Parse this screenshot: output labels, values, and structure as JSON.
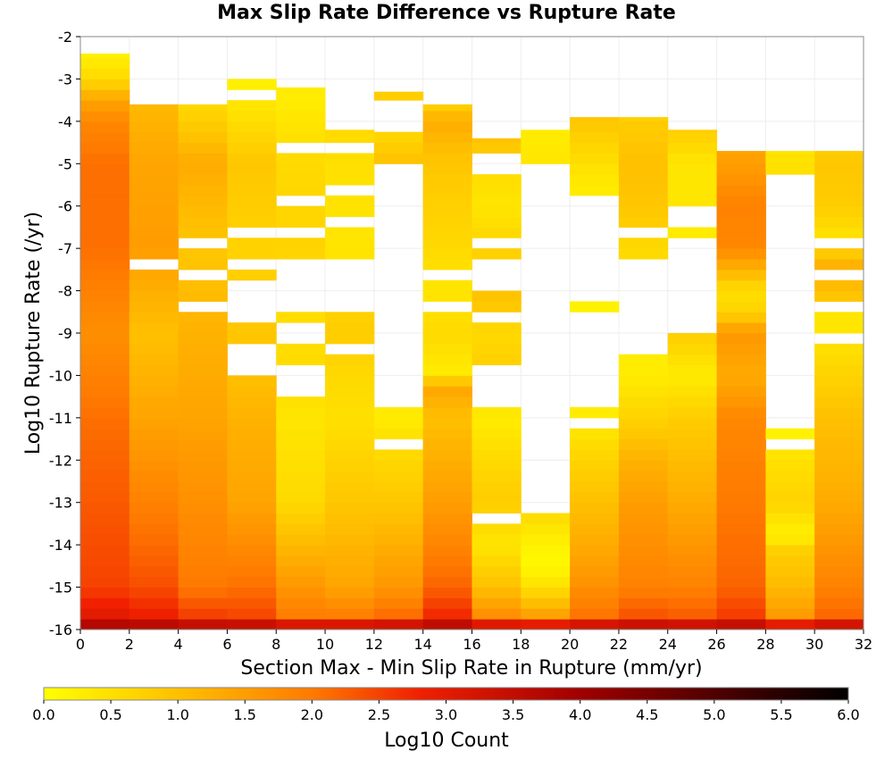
{
  "chart_data": {
    "type": "heatmap",
    "title": "Max Slip Rate Difference vs Rupture Rate",
    "xlabel": "Section Max - Min Slip Rate in Rupture (mm/yr)",
    "ylabel": "Log10 Rupture Rate (/yr)",
    "xlim": [
      0,
      32
    ],
    "ylim": [
      -16,
      -2
    ],
    "x_bin_width": 2,
    "y_bin_height": 0.25,
    "x_ticks": [
      "0",
      "2",
      "4",
      "6",
      "8",
      "10",
      "12",
      "14",
      "16",
      "18",
      "20",
      "22",
      "24",
      "26",
      "28",
      "30",
      "32"
    ],
    "y_ticks": [
      "-2",
      "-3",
      "-4",
      "-5",
      "-6",
      "-7",
      "-8",
      "-9",
      "-10",
      "-11",
      "-12",
      "-13",
      "-14",
      "-15",
      "-16"
    ],
    "colorbar": {
      "label": "Log10 Count",
      "range": [
        0,
        6
      ],
      "ticks": [
        "0.0",
        "0.5",
        "1.0",
        "1.5",
        "2.0",
        "2.5",
        "3.0",
        "3.5",
        "4.0",
        "4.5",
        "5.0",
        "5.5",
        "6.0"
      ],
      "stops": [
        {
          "value": 0.0,
          "color": "#ffff00"
        },
        {
          "value": 1.0,
          "color": "#ffc000"
        },
        {
          "value": 2.0,
          "color": "#ff7a00"
        },
        {
          "value": 2.8,
          "color": "#f02000"
        },
        {
          "value": 4.0,
          "color": "#a00000"
        },
        {
          "value": 6.0,
          "color": "#000000"
        }
      ]
    },
    "grid": true,
    "columns": [
      {
        "x": 1,
        "fill": [
          -16,
          -2.4
        ],
        "profile": [
          [
            -16,
            4.3
          ],
          [
            -15.75,
            3.1
          ],
          [
            -15,
            2.5
          ],
          [
            -13,
            2.3
          ],
          [
            -11,
            2.1
          ],
          [
            -9,
            1.7
          ],
          [
            -7,
            2.1
          ],
          [
            -5,
            2.1
          ],
          [
            -4,
            1.8
          ],
          [
            -3.5,
            1.4
          ],
          [
            -3,
            0.6
          ],
          [
            -2.4,
            0.2
          ]
        ],
        "holes": []
      },
      {
        "x": 3,
        "fill": [
          -16,
          -3.6
        ],
        "profile": [
          [
            -16,
            4.3
          ],
          [
            -15.75,
            2.9
          ],
          [
            -15,
            2.4
          ],
          [
            -13,
            1.9
          ],
          [
            -11,
            1.4
          ],
          [
            -9,
            1.0
          ],
          [
            -7,
            1.5
          ],
          [
            -5,
            1.4
          ],
          [
            -3.6,
            1.1
          ]
        ],
        "holes": [
          [
            -7.5,
            -7.25
          ]
        ]
      },
      {
        "x": 5,
        "fill": [
          -16,
          -3.6
        ],
        "profile": [
          [
            -16,
            4.3
          ],
          [
            -15.75,
            2.6
          ],
          [
            -15,
            2.0
          ],
          [
            -13,
            1.7
          ],
          [
            -11,
            1.4
          ],
          [
            -9,
            1.2
          ],
          [
            -7,
            0.9
          ],
          [
            -5,
            1.3
          ],
          [
            -3.6,
            0.6
          ]
        ],
        "holes": [
          [
            -7.75,
            -7.5
          ],
          [
            -8.5,
            -8.25
          ],
          [
            -7.0,
            -6.75
          ]
        ]
      },
      {
        "x": 7,
        "fill": [
          -16,
          -3.0
        ],
        "profile": [
          [
            -16,
            4.3
          ],
          [
            -15.75,
            2.5
          ],
          [
            -15,
            2.1
          ],
          [
            -13,
            1.4
          ],
          [
            -11,
            1.2
          ],
          [
            -10,
            1.0
          ],
          [
            -9,
            0.9
          ],
          [
            -7,
            0.7
          ],
          [
            -5,
            0.9
          ],
          [
            -3.6,
            0.4
          ],
          [
            -3,
            0.2
          ]
        ],
        "holes": [
          [
            -10,
            -9.25
          ],
          [
            -8.75,
            -7.75
          ],
          [
            -7.5,
            -7.25
          ],
          [
            -6.75,
            -6.5
          ],
          [
            -3.5,
            -3.3
          ]
        ]
      },
      {
        "x": 9,
        "fill": [
          -16,
          -3.2
        ],
        "profile": [
          [
            -16,
            4.3
          ],
          [
            -15.75,
            2.0
          ],
          [
            -15,
            1.6
          ],
          [
            -13,
            0.6
          ],
          [
            -11,
            0.4
          ],
          [
            -10,
            0.6
          ],
          [
            -9,
            0.5
          ],
          [
            -7,
            0.7
          ],
          [
            -5,
            0.6
          ],
          [
            -3.5,
            0.3
          ]
        ],
        "holes": [
          [
            -10.5,
            -9.8
          ],
          [
            -9.25,
            -8.75
          ],
          [
            -8.5,
            -7.25
          ],
          [
            -6.75,
            -6.5
          ],
          [
            -6.0,
            -5.75
          ],
          [
            -4.75,
            -4.5
          ],
          [
            -3.6,
            -3.5
          ]
        ]
      },
      {
        "x": 11,
        "fill": [
          -16,
          -4.2
        ],
        "profile": [
          [
            -16,
            4.3
          ],
          [
            -15.75,
            2.0
          ],
          [
            -15,
            1.4
          ],
          [
            -13,
            0.9
          ],
          [
            -11,
            0.5
          ],
          [
            -10,
            0.6
          ],
          [
            -9,
            0.8
          ],
          [
            -7,
            0.4
          ],
          [
            -5,
            0.5
          ],
          [
            -4.2,
            0.6
          ]
        ],
        "holes": [
          [
            -9.5,
            -9.25
          ],
          [
            -8.5,
            -7.25
          ],
          [
            -6.5,
            -6.25
          ],
          [
            -5.75,
            -5.5
          ],
          [
            -4.7,
            -4.5
          ]
        ]
      },
      {
        "x": 13,
        "fill": [
          -16,
          -3.3
        ],
        "profile": [
          [
            -16,
            4.3
          ],
          [
            -15.75,
            2.2
          ],
          [
            -15,
            1.6
          ],
          [
            -13,
            0.9
          ],
          [
            -11.5,
            0.5
          ],
          [
            -11,
            0.3
          ],
          [
            -5,
            1.0
          ],
          [
            -4.2,
            0.6
          ],
          [
            -3.3,
            0.8
          ]
        ],
        "holes": [
          [
            -11.75,
            -11.5
          ],
          [
            -10.75,
            -4.9
          ],
          [
            -4.2,
            -3.6
          ]
        ]
      },
      {
        "x": 15,
        "fill": [
          -16,
          -3.6
        ],
        "profile": [
          [
            -16,
            4.3
          ],
          [
            -15.75,
            2.8
          ],
          [
            -15,
            2.2
          ],
          [
            -13,
            1.5
          ],
          [
            -11,
            1.0
          ],
          [
            -10.25,
            1.4
          ],
          [
            -10,
            0.3
          ],
          [
            -9,
            0.6
          ],
          [
            -8,
            0.4
          ],
          [
            -7,
            0.6
          ],
          [
            -5,
            0.9
          ],
          [
            -4,
            1.3
          ],
          [
            -3.6,
            0.7
          ]
        ],
        "holes": [
          [
            -8.5,
            -8.25
          ],
          [
            -7.75,
            -7.5
          ]
        ]
      },
      {
        "x": 17,
        "fill": [
          -16,
          -4.4
        ],
        "profile": [
          [
            -16,
            4.3
          ],
          [
            -15.75,
            1.8
          ],
          [
            -15,
            1.0
          ],
          [
            -14,
            0.4
          ],
          [
            -13,
            0.8
          ],
          [
            -12,
            0.6
          ],
          [
            -11,
            0.3
          ],
          [
            -10,
            0.8
          ],
          [
            -9,
            0.6
          ],
          [
            -8,
            1.0
          ],
          [
            -6,
            0.4
          ],
          [
            -5,
            0.6
          ],
          [
            -4.4,
            1.0
          ]
        ],
        "holes": [
          [
            -13.5,
            -13.25
          ],
          [
            -10.75,
            -9.8
          ],
          [
            -8.75,
            -8.5
          ],
          [
            -8.0,
            -7.25
          ],
          [
            -7.0,
            -6.75
          ],
          [
            -5.25,
            -4.7
          ]
        ]
      },
      {
        "x": 19,
        "fill": [
          -16,
          -4.2
        ],
        "profile": [
          [
            -16,
            4.3
          ],
          [
            -15.75,
            1.6
          ],
          [
            -15,
            0.5
          ],
          [
            -14.5,
            0.1
          ],
          [
            -14,
            0.2
          ],
          [
            -13.25,
            0.6
          ],
          [
            -5,
            0.4
          ],
          [
            -4.2,
            0.3
          ]
        ],
        "holes": [
          [
            -13.25,
            -5.0
          ],
          [
            -4.5,
            -4.4
          ]
        ]
      },
      {
        "x": 21,
        "fill": [
          -16,
          -3.9
        ],
        "profile": [
          [
            -16,
            4.3
          ],
          [
            -15.75,
            2.1
          ],
          [
            -15,
            1.7
          ],
          [
            -14,
            1.3
          ],
          [
            -13,
            1.0
          ],
          [
            -12,
            0.7
          ],
          [
            -11,
            0.3
          ],
          [
            -8.2,
            0.2
          ],
          [
            -6,
            0.2
          ],
          [
            -5,
            0.5
          ],
          [
            -4,
            0.9
          ],
          [
            -3.9,
            0.9
          ]
        ],
        "holes": [
          [
            -11.25,
            -11.0
          ],
          [
            -10.75,
            -8.5
          ],
          [
            -8.25,
            -5.75
          ]
        ]
      },
      {
        "x": 23,
        "fill": [
          -16,
          -3.9
        ],
        "profile": [
          [
            -16,
            4.3
          ],
          [
            -15.75,
            2.4
          ],
          [
            -15,
            1.9
          ],
          [
            -13,
            1.5
          ],
          [
            -12,
            1.2
          ],
          [
            -11,
            0.7
          ],
          [
            -10,
            0.3
          ],
          [
            -9.5,
            0.3
          ],
          [
            -7,
            0.6
          ],
          [
            -6,
            0.9
          ],
          [
            -5,
            1.0
          ],
          [
            -4,
            0.8
          ],
          [
            -3.9,
            0.7
          ]
        ],
        "holes": [
          [
            -9.5,
            -7.25
          ],
          [
            -6.75,
            -6.5
          ]
        ]
      },
      {
        "x": 25,
        "fill": [
          -16,
          -4.2
        ],
        "profile": [
          [
            -16,
            4.3
          ],
          [
            -15.75,
            2.3
          ],
          [
            -15,
            1.9
          ],
          [
            -13,
            1.3
          ],
          [
            -11,
            0.8
          ],
          [
            -10,
            0.3
          ],
          [
            -9,
            0.8
          ],
          [
            -6.75,
            0.3
          ],
          [
            -6,
            0.4
          ],
          [
            -5,
            0.4
          ],
          [
            -4.2,
            0.8
          ]
        ],
        "holes": [
          [
            -9.0,
            -6.75
          ],
          [
            -6.5,
            -6.0
          ]
        ]
      },
      {
        "x": 27,
        "fill": [
          -16,
          -4.7
        ],
        "profile": [
          [
            -16,
            4.3
          ],
          [
            -15.75,
            2.6
          ],
          [
            -15,
            2.2
          ],
          [
            -13,
            2.0
          ],
          [
            -11,
            1.8
          ],
          [
            -10,
            1.3
          ],
          [
            -9,
            1.6
          ],
          [
            -8.5,
            0.7
          ],
          [
            -8,
            0.5
          ],
          [
            -7.5,
            1.2
          ],
          [
            -7,
            1.8
          ],
          [
            -6,
            1.9
          ],
          [
            -5,
            1.5
          ],
          [
            -4.7,
            1.4
          ]
        ],
        "holes": []
      },
      {
        "x": 29,
        "fill": [
          -16,
          -4.7
        ],
        "profile": [
          [
            -16,
            4.3
          ],
          [
            -15.75,
            1.6
          ],
          [
            -15,
            1.1
          ],
          [
            -14,
            0.7
          ],
          [
            -13.8,
            0.2
          ],
          [
            -13,
            0.7
          ],
          [
            -12,
            0.5
          ],
          [
            -11.5,
            0.2
          ],
          [
            -5,
            0.5
          ],
          [
            -4.7,
            0.4
          ]
        ],
        "holes": [
          [
            -11.75,
            -11.5
          ],
          [
            -11.25,
            -5.2
          ]
        ]
      },
      {
        "x": 31,
        "fill": [
          -16,
          -4.7
        ],
        "profile": [
          [
            -16,
            4.3
          ],
          [
            -15.75,
            2.2
          ],
          [
            -15,
            1.9
          ],
          [
            -13,
            1.3
          ],
          [
            -11,
            1.0
          ],
          [
            -9,
            0.4
          ],
          [
            -8.5,
            0.4
          ],
          [
            -8,
            1.1
          ],
          [
            -7.5,
            1.0
          ],
          [
            -7.25,
            1.4
          ],
          [
            -7,
            0.3
          ],
          [
            -6,
            0.8
          ],
          [
            -5,
            0.9
          ],
          [
            -4.7,
            0.8
          ]
        ],
        "holes": [
          [
            -9.25,
            -9.0
          ],
          [
            -8.5,
            -8.25
          ],
          [
            -7.75,
            -7.5
          ],
          [
            -7.0,
            -6.75
          ]
        ]
      }
    ]
  }
}
